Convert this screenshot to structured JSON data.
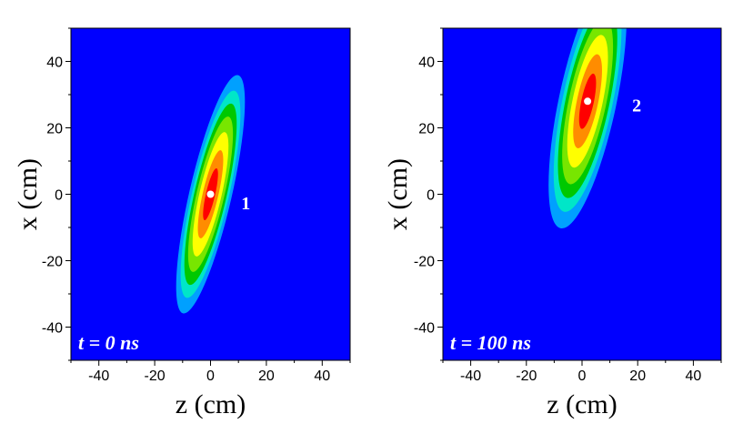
{
  "chart_data": [
    {
      "type": "heatmap",
      "panel": 1,
      "xlabel": "z (cm)",
      "ylabel": "x (cm)",
      "xlim": [
        -50,
        50
      ],
      "ylim": [
        -50,
        50
      ],
      "xticks": [
        -40,
        -20,
        0,
        20,
        40
      ],
      "yticks": [
        -40,
        -20,
        0,
        20,
        40
      ],
      "xtick_labels": [
        "-40",
        "-20",
        "0",
        "20",
        "40"
      ],
      "ytick_labels": [
        "-40",
        "-20",
        "0",
        "20",
        "40"
      ],
      "annotation": "t = 0 ns",
      "marker_label": "1",
      "distribution": {
        "center_z": 0,
        "center_x": 0,
        "tilt_deg_from_x_axis": 13,
        "sigma_major": 16,
        "sigma_minor": 3.3
      },
      "colormap": [
        "#0000ff",
        "#00a0ff",
        "#00e6c8",
        "#00c800",
        "#78e600",
        "#ffff00",
        "#ff8c00",
        "#ff0000"
      ]
    },
    {
      "type": "heatmap",
      "panel": 2,
      "xlabel": "z (cm)",
      "ylabel": "x (cm)",
      "xlim": [
        -50,
        50
      ],
      "ylim": [
        -50,
        50
      ],
      "xticks": [
        -40,
        -20,
        0,
        20,
        40
      ],
      "yticks": [
        -40,
        -20,
        0,
        20,
        40
      ],
      "xtick_labels": [
        "-40",
        "-20",
        "0",
        "20",
        "40"
      ],
      "ytick_labels": [
        "-40",
        "-20",
        "0",
        "20",
        "40"
      ],
      "annotation": "t = 100 ns",
      "marker_label": "2",
      "distribution": {
        "center_z": 2,
        "center_x": 28,
        "tilt_deg_from_x_axis": 12,
        "sigma_major": 17,
        "sigma_minor": 4.5
      },
      "colormap": [
        "#0000ff",
        "#00a0ff",
        "#00e6c8",
        "#00c800",
        "#78e600",
        "#ffff00",
        "#ff8c00",
        "#ff0000"
      ]
    }
  ]
}
